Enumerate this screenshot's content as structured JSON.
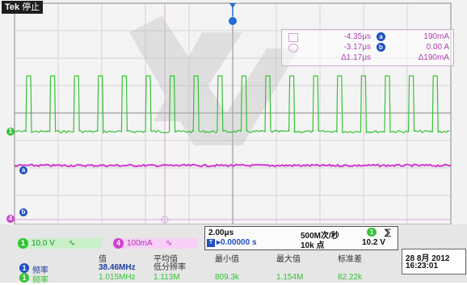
{
  "status": {
    "brand": "Tek",
    "state": "停止"
  },
  "cursors": {
    "rows": [
      {
        "time": "-4.35μs",
        "badge": "a",
        "value": "190mA"
      },
      {
        "time": "-3.17μs",
        "badge": "b",
        "value": "0.00 A"
      },
      {
        "time": "Δ1.17μs",
        "badge": "",
        "value": "Δ190mA"
      }
    ]
  },
  "channels": {
    "ch1": {
      "num": "1",
      "label": "10.0 V",
      "coupling": "∿",
      "color": "#3cc83c"
    },
    "ch4": {
      "num": "4",
      "label": "100mA",
      "coupling": "∿",
      "color": "#d040d0"
    }
  },
  "horizontal": {
    "timebase": "2.00μs",
    "sample_rate": "500M次/秒",
    "position": "▸0.00000 s",
    "record_length": "10k 点",
    "trigger_level": "10.2 V",
    "trigger_channel": "1",
    "trigger_slope": "⅀"
  },
  "measurements": {
    "headers": [
      "值",
      "平均值",
      "最小值",
      "最大值",
      "标准差"
    ],
    "subheader": "低分辨率",
    "rows": [
      {
        "channel": "1",
        "name": "频率",
        "value": "38.46MHz",
        "mean": "",
        "min": "",
        "max": "",
        "std": ""
      },
      {
        "channel": "1",
        "name": "频率",
        "value": "1.015MHz",
        "mean": "1.113M",
        "min": "809.3k",
        "max": "1.154M",
        "std": "82.22k"
      }
    ]
  },
  "datetime": {
    "date": "28 8月 2012",
    "time": "16:23:01"
  },
  "channel_markers": {
    "ch1": "1",
    "cursor_a": "a",
    "cursor_b": "b",
    "ch4": "4"
  },
  "trigger_marker": "T"
}
